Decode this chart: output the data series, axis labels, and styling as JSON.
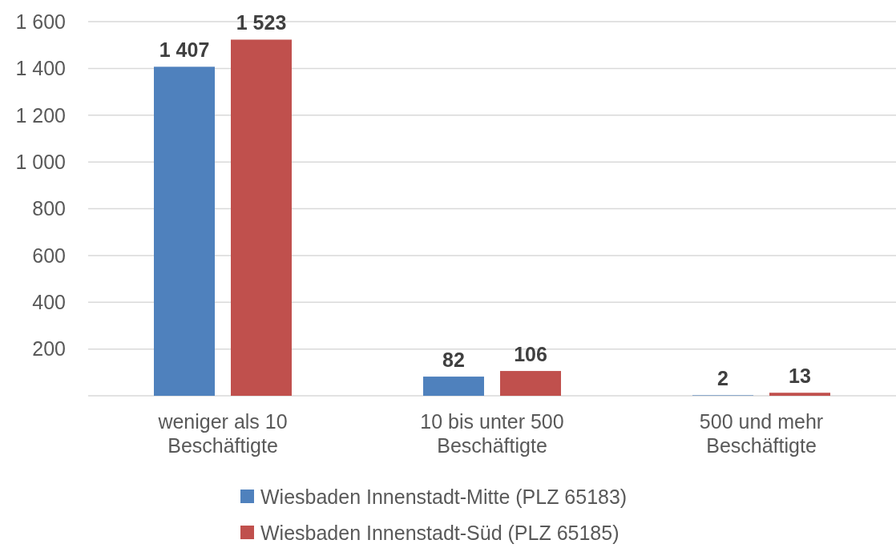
{
  "chart_data": {
    "type": "bar",
    "categories": [
      "weniger als 10 Beschäftigte",
      "10 bis unter 500 Beschäftigte",
      "500 und mehr Beschäftigte"
    ],
    "series": [
      {
        "name": "Wiesbaden Innenstadt-Mitte (PLZ 65183)",
        "color": "#4f81bd",
        "values": [
          1407,
          82,
          2
        ],
        "value_labels": [
          "1 407",
          "82",
          "2"
        ]
      },
      {
        "name": "Wiesbaden Innenstadt-Süd (PLZ 65185)",
        "color": "#c0504d",
        "values": [
          1523,
          106,
          13
        ],
        "value_labels": [
          "1 523",
          "106",
          "13"
        ]
      }
    ],
    "ylim": [
      0,
      1600
    ],
    "yticks": [
      {
        "value": 0,
        "label": null
      },
      200,
      400,
      600,
      800,
      {
        "value": 1000,
        "label": "1 000"
      },
      {
        "value": 1200,
        "label": "1 200"
      },
      {
        "value": 1400,
        "label": "1 400"
      },
      {
        "value": 1600,
        "label": "1 600"
      }
    ],
    "grid": "y",
    "legend": "bottom"
  }
}
